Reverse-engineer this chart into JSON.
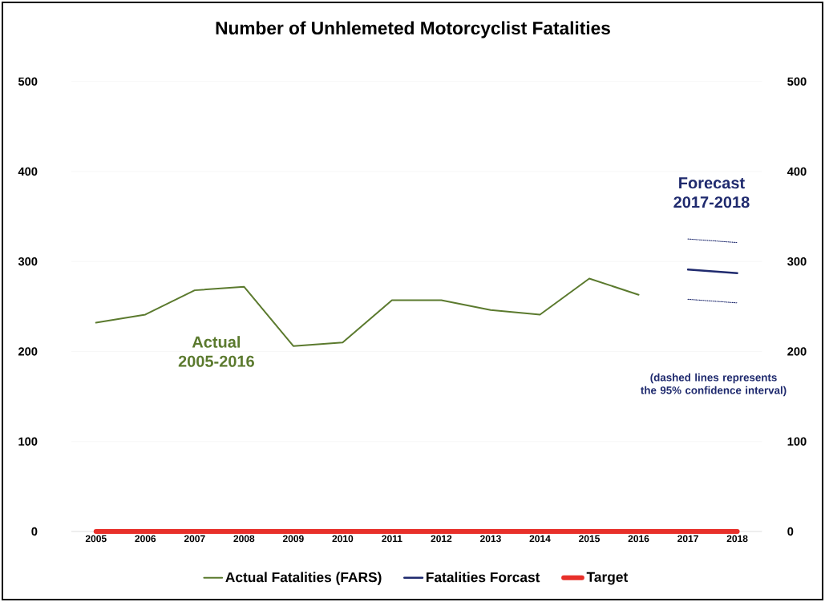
{
  "chart_data": {
    "type": "line",
    "title": "Number of Unhlemeted Motorcyclist Fatalities",
    "categories": [
      "2005",
      "2006",
      "2007",
      "2008",
      "2009",
      "2010",
      "2011",
      "2012",
      "2013",
      "2014",
      "2015",
      "2016",
      "2017",
      "2018"
    ],
    "series": [
      {
        "name": "Actual Fatalities (FARS)",
        "color": "#5b7a2e",
        "values": [
          232,
          241,
          268,
          272,
          206,
          210,
          257,
          257,
          246,
          241,
          281,
          263,
          null,
          null
        ]
      },
      {
        "name": "Fatalities Forcast",
        "color": "#1f2a6e",
        "values": [
          null,
          null,
          null,
          null,
          null,
          null,
          null,
          null,
          null,
          null,
          null,
          null,
          291,
          287
        ]
      },
      {
        "color": "#1f2a6e",
        "line_style": "dotted",
        "values": [
          null,
          null,
          null,
          null,
          null,
          null,
          null,
          null,
          null,
          null,
          null,
          null,
          325,
          321
        ]
      },
      {
        "color": "#1f2a6e",
        "line_style": "dotted",
        "values": [
          null,
          null,
          null,
          null,
          null,
          null,
          null,
          null,
          null,
          null,
          null,
          null,
          258,
          254
        ]
      },
      {
        "name": "Target",
        "color": "#e8302a",
        "values": [
          0,
          0,
          0,
          0,
          0,
          0,
          0,
          0,
          0,
          0,
          0,
          0,
          0,
          0
        ]
      }
    ],
    "ylim": [
      0,
      500
    ],
    "yticks": [
      0,
      100,
      200,
      300,
      400,
      500
    ],
    "y2lim": [
      0,
      500
    ],
    "y2ticks": [
      0,
      100,
      200,
      300,
      400,
      500
    ],
    "grid": "y",
    "legend": "bottom",
    "marker": "none",
    "line_style": "solid",
    "annotations": [
      "Actual 2005-2016",
      "Forecast 2017-2018",
      "(dashed lines represents the 95% confidence interval)"
    ]
  }
}
